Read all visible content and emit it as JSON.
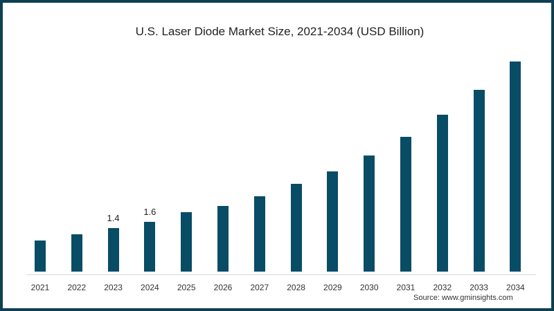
{
  "chart_data": {
    "type": "bar",
    "title": "U.S. Laser Diode Market Size, 2021-2034 (USD Billion)",
    "xlabel": "",
    "ylabel": "",
    "categories": [
      "2021",
      "2022",
      "2023",
      "2024",
      "2025",
      "2026",
      "2027",
      "2028",
      "2029",
      "2030",
      "2031",
      "2032",
      "2033",
      "2034"
    ],
    "values": [
      1.0,
      1.2,
      1.4,
      1.6,
      1.9,
      2.1,
      2.4,
      2.8,
      3.2,
      3.7,
      4.3,
      5.0,
      5.8,
      6.7
    ],
    "data_labels": {
      "2023": "1.4",
      "2024": "1.6"
    },
    "ylim": [
      0,
      7
    ],
    "grid": false,
    "legend": null,
    "bar_color": "#084c66",
    "source": "Source: www.gminsights.com"
  }
}
